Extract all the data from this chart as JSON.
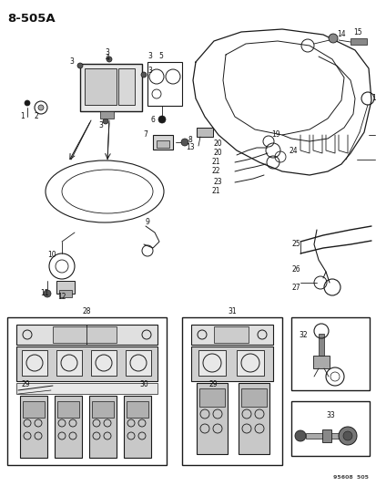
{
  "title": "8-505A",
  "watermark": "95608  505",
  "bg_color": "#ffffff",
  "fig_width": 4.14,
  "fig_height": 5.33,
  "dpi": 100,
  "lc": "#1a1a1a",
  "tc": "#111111",
  "fs_label": 5.5,
  "fs_title": 9.5,
  "fs_watermark": 4.5
}
